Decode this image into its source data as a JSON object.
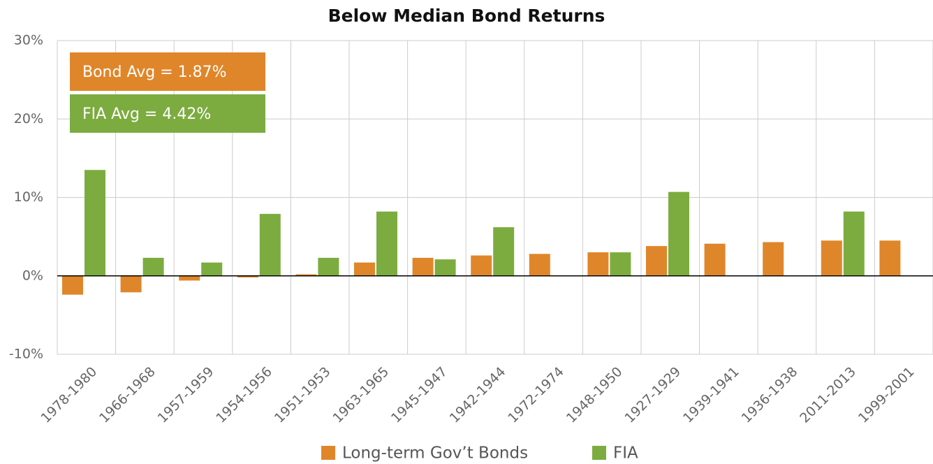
{
  "chart_data": {
    "type": "bar",
    "title": "Below Median Bond Returns",
    "categories": [
      "1978-1980",
      "1966-1968",
      "1957-1959",
      "1954-1956",
      "1951-1953",
      "1963-1965",
      "1945-1947",
      "1942-1944",
      "1972-1974",
      "1948-1950",
      "1927-1929",
      "1939-1941",
      "1936-1938",
      "2011-2013",
      "1999-2001"
    ],
    "series": [
      {
        "name": "Long-term Gov’t Bonds",
        "color": "#e0862a",
        "values": [
          -2.4,
          -2.1,
          -0.6,
          -0.2,
          0.2,
          1.7,
          2.3,
          2.6,
          2.8,
          3.0,
          3.8,
          4.1,
          4.3,
          4.5,
          4.5
        ]
      },
      {
        "name": "FIA",
        "color": "#7cac3f",
        "values": [
          13.5,
          2.3,
          1.7,
          7.9,
          2.3,
          8.2,
          2.1,
          6.2,
          null,
          3.0,
          10.7,
          null,
          null,
          8.2,
          null
        ]
      }
    ],
    "ylim": [
      -10,
      30
    ],
    "yticks": [
      {
        "value": -10,
        "label": "-10%"
      },
      {
        "value": 0,
        "label": "0%"
      },
      {
        "value": 10,
        "label": "10%"
      },
      {
        "value": 20,
        "label": "20%"
      },
      {
        "value": 30,
        "label": "30%"
      }
    ],
    "grid": true,
    "legend": "bottom",
    "annotations": [
      {
        "text": "Bond Avg = 1.87%",
        "color": "#e0862a"
      },
      {
        "text": "FIA Avg = 4.42%",
        "color": "#7cac3f"
      }
    ]
  }
}
